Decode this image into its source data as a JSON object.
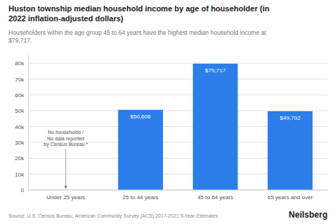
{
  "chart_data": {
    "type": "bar",
    "title": "Huston township median household income by age of householder (in\n2022 inflation-adjusted dollars)",
    "subtitle": "Householders within the age group 45 to 64 years have the highest median household income at\n$79,717.",
    "categories": [
      "Under 25 years",
      "25 to 44 years",
      "45 to 64 years",
      "65 years and over"
    ],
    "values": [
      0,
      50606,
      79717,
      49702
    ],
    "value_labels": [
      null,
      "$50,606",
      "$79,717",
      "$49,702"
    ],
    "data_labels": true,
    "color": "#2b7de9",
    "annotation": "No households /\nNo data reported\nby Census Bureau.*",
    "source": "Source: U.S. Census Bureau, American Community Survey (ACS) 2017-2021 5-Year Estimates",
    "brand": "Neilsberg",
    "ylim": [
      0,
      85000
    ],
    "yticks": [
      0,
      {
        "value": 10000,
        "label": "10k"
      },
      {
        "value": 20000,
        "label": "20k"
      },
      {
        "value": 30000,
        "label": "30k"
      },
      {
        "value": 40000,
        "label": "40k"
      },
      {
        "value": 50000,
        "label": "50k"
      },
      {
        "value": 60000,
        "label": "60k"
      },
      {
        "value": 70000,
        "label": "70k"
      },
      {
        "value": 80000,
        "label": "80k"
      }
    ],
    "grid": true
  }
}
